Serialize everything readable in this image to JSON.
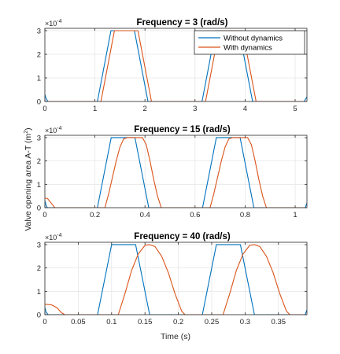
{
  "figure": {
    "ylabel": "Valve  opening  area  A-T  (m",
    "ylabel_sup": "2",
    "ylabel_close": ")",
    "xlabel": "Time (s)",
    "y_exponent_base": "×10",
    "y_exponent": "-4"
  },
  "colors": {
    "without": "#0072BD",
    "with": "#D95319",
    "grid": "#e6e6e6",
    "axis": "#262626"
  },
  "chart_data": [
    {
      "type": "line",
      "title": "Frequency = 3 (rad/s)",
      "xlim": [
        0,
        5.236
      ],
      "ylim": [
        0,
        3.1
      ],
      "xticks": [
        0,
        1,
        2,
        3,
        4,
        5
      ],
      "xtick_labels": [
        "0",
        "1",
        "2",
        "3",
        "4",
        "5"
      ],
      "yticks": [
        0,
        1,
        2,
        3
      ],
      "ytick_labels": [
        "0",
        "1",
        "2",
        "3"
      ],
      "grid": true,
      "legend": {
        "position": "top-right",
        "entries": [
          "Without dynamics",
          "With dynamics"
        ]
      },
      "series": [
        {
          "name": "Without dynamics",
          "x": [
            0,
            0.02,
            0.06,
            1.05,
            1.32,
            1.79,
            2.06,
            3.14,
            3.41,
            3.88,
            4.15,
            5.18,
            5.236
          ],
          "y": [
            0.3,
            0.15,
            0,
            0,
            3,
            3,
            0,
            0,
            3,
            3,
            0,
            0,
            0.2
          ]
        },
        {
          "name": "With dynamics",
          "x": [
            0,
            1.12,
            1.39,
            1.86,
            2.13,
            3.21,
            3.48,
            3.95,
            4.22,
            5.236
          ],
          "y": [
            0,
            0,
            3,
            3,
            0,
            0,
            3,
            3,
            0,
            0
          ]
        }
      ]
    },
    {
      "type": "line",
      "title": "Frequency = 15 (rad/s)",
      "xlim": [
        0,
        1.047
      ],
      "ylim": [
        0,
        3.1
      ],
      "xticks": [
        0,
        0.2,
        0.4,
        0.6,
        0.8,
        1
      ],
      "xtick_labels": [
        "0",
        "0.2",
        "0.4",
        "0.6",
        "0.8",
        "1"
      ],
      "yticks": [
        0,
        1,
        2,
        3
      ],
      "ytick_labels": [
        "0",
        "1",
        "2",
        "3"
      ],
      "grid": true,
      "series": [
        {
          "name": "Without dynamics",
          "x": [
            0,
            0.005,
            0.01,
            0.21,
            0.265,
            0.36,
            0.415,
            0.63,
            0.685,
            0.78,
            0.835,
            1.04,
            1.047
          ],
          "y": [
            0.3,
            0.1,
            0,
            0,
            3,
            3,
            0,
            0,
            3,
            3,
            0,
            0,
            0.2
          ]
        },
        {
          "name": "With dynamics",
          "x": [
            0,
            0.01,
            0.025,
            0.04,
            0.24,
            0.255,
            0.27,
            0.285,
            0.3,
            0.315,
            0.33,
            0.39,
            0.405,
            0.42,
            0.435,
            0.45,
            0.465,
            0.66,
            0.675,
            0.69,
            0.705,
            0.72,
            0.735,
            0.75,
            0.81,
            0.825,
            0.84,
            0.855,
            0.87,
            0.885,
            1.047
          ],
          "y": [
            0.4,
            0.4,
            0.2,
            0,
            0,
            0.6,
            1.3,
            2.0,
            2.6,
            2.95,
            3,
            3,
            2.7,
            2.0,
            1.2,
            0.5,
            0,
            0,
            0.6,
            1.3,
            2.0,
            2.6,
            2.95,
            3,
            3,
            2.7,
            2.0,
            1.2,
            0.5,
            0,
            0
          ]
        }
      ]
    },
    {
      "type": "line",
      "title": "Frequency = 40 (rad/s)",
      "xlim": [
        0,
        0.3927
      ],
      "ylim": [
        0,
        3.1
      ],
      "xticks": [
        0,
        0.05,
        0.1,
        0.15,
        0.2,
        0.25,
        0.3,
        0.35
      ],
      "xtick_labels": [
        "0",
        "0.05",
        "0.1",
        "0.15",
        "0.2",
        "0.25",
        "0.3",
        "0.35"
      ],
      "yticks": [
        0,
        1,
        2,
        3
      ],
      "ytick_labels": [
        "0",
        "1",
        "2",
        "3"
      ],
      "grid": true,
      "xlabel": "Time (s)",
      "series": [
        {
          "name": "Without dynamics",
          "x": [
            0,
            0.002,
            0.005,
            0.079,
            0.1,
            0.136,
            0.157,
            0.236,
            0.257,
            0.293,
            0.314,
            0.39,
            0.3927
          ],
          "y": [
            0.3,
            0.1,
            0,
            0,
            3,
            3,
            0,
            0,
            3,
            3,
            0,
            0,
            0.2
          ]
        },
        {
          "name": "With dynamics",
          "x": [
            0,
            0.01,
            0.018,
            0.025,
            0.03,
            0.11,
            0.12,
            0.13,
            0.14,
            0.15,
            0.157,
            0.165,
            0.175,
            0.185,
            0.195,
            0.205,
            0.21,
            0.267,
            0.277,
            0.287,
            0.297,
            0.307,
            0.314,
            0.322,
            0.332,
            0.342,
            0.352,
            0.362,
            0.367,
            0.3927
          ],
          "y": [
            0.45,
            0.42,
            0.3,
            0.08,
            0,
            0,
            0.9,
            1.9,
            2.6,
            2.97,
            3,
            2.92,
            2.5,
            1.8,
            0.9,
            0.15,
            0,
            0,
            0.9,
            1.9,
            2.6,
            2.97,
            3,
            2.92,
            2.5,
            1.8,
            0.9,
            0.15,
            0,
            0
          ]
        }
      ]
    }
  ]
}
